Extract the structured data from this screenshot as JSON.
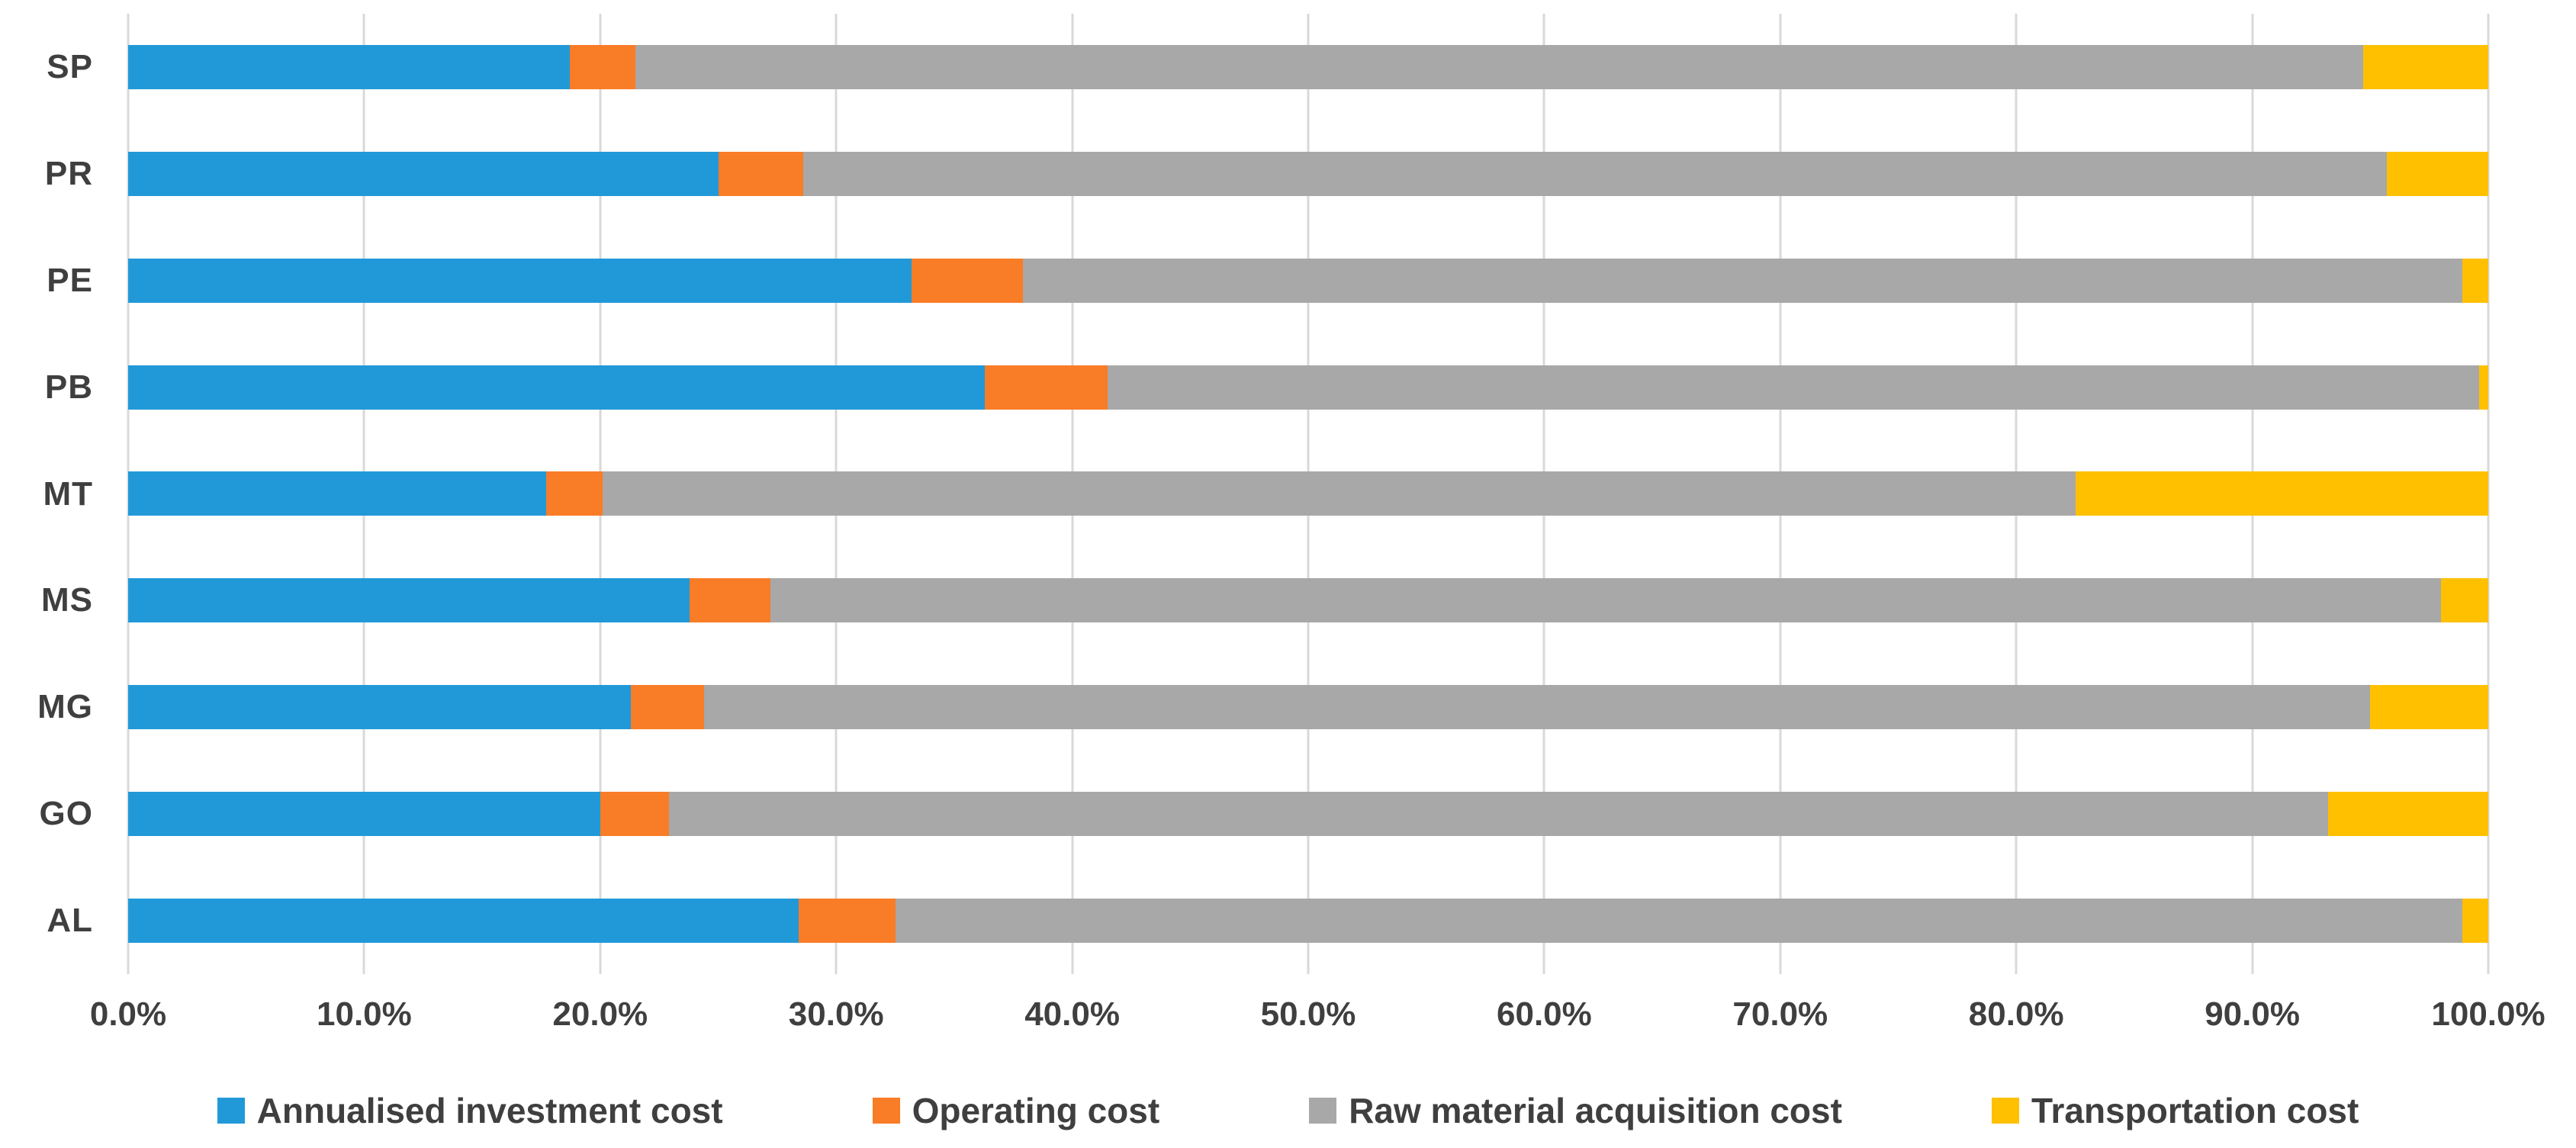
{
  "chart_data": {
    "type": "bar",
    "orientation": "horizontal",
    "stacked": true,
    "title": "",
    "xlabel": "",
    "ylabel": "",
    "grid": true,
    "legend_position": "bottom",
    "categories": [
      "SP",
      "PR",
      "PE",
      "PB",
      "MT",
      "MS",
      "MG",
      "GO",
      "AL"
    ],
    "series": [
      {
        "name": "Annualised investment cost",
        "color": "#2199d8",
        "values": [
          18.7,
          25.0,
          33.2,
          36.3,
          17.7,
          23.8,
          21.3,
          20.0,
          28.4
        ]
      },
      {
        "name": "Operating cost",
        "color": "#f97c27",
        "values": [
          2.8,
          3.6,
          4.7,
          5.2,
          2.4,
          3.4,
          3.1,
          2.9,
          4.1
        ]
      },
      {
        "name": "Raw material acquisition cost",
        "color": "#a8a8a8",
        "values": [
          73.2,
          67.1,
          61.0,
          58.1,
          62.4,
          70.8,
          70.6,
          70.3,
          66.4
        ]
      },
      {
        "name": "Transportation cost",
        "color": "#ffc000",
        "values": [
          5.3,
          4.3,
          1.1,
          0.4,
          17.5,
          2.0,
          5.0,
          6.8,
          1.1
        ]
      }
    ],
    "x_axis": {
      "min": 0,
      "max": 100,
      "tick_step": 10,
      "tick_labels": [
        "0.0%",
        "10.0%",
        "20.0%",
        "30.0%",
        "40.0%",
        "50.0%",
        "60.0%",
        "70.0%",
        "80.0%",
        "90.0%",
        "100.0%"
      ]
    },
    "colors": {
      "gridline": "#d9d9d9",
      "axis_text": "#3f3f3f",
      "background": "#ffffff"
    }
  }
}
